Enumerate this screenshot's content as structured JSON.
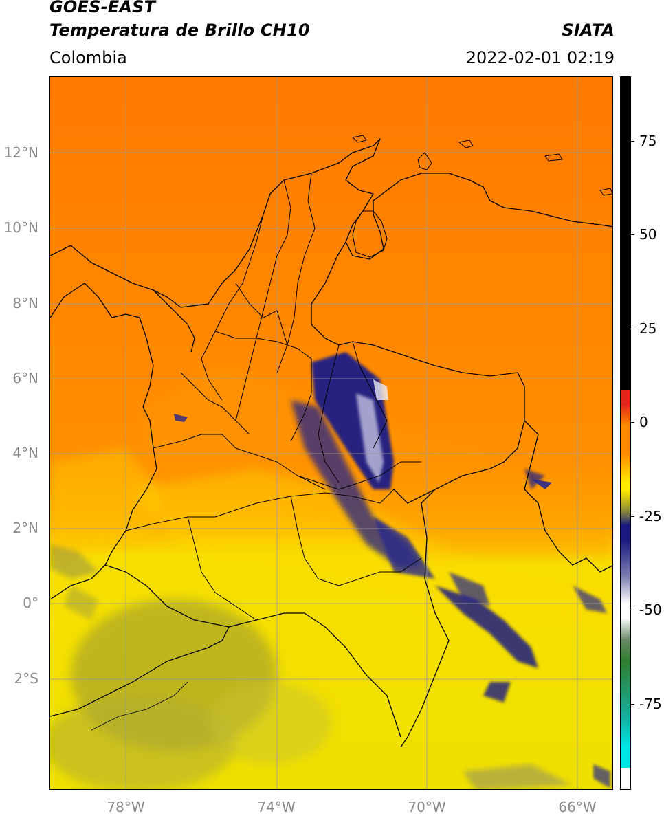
{
  "header": {
    "satellite": "GOES-EAST",
    "product": "Temperatura de Brillo CH10",
    "region": "Colombia",
    "source": "SIATA",
    "datetime": "2022-02-01 02:19"
  },
  "axes": {
    "lat_labels": [
      "12°N",
      "10°N",
      "8°N",
      "6°N",
      "4°N",
      "2°N",
      "0°",
      "2°S"
    ],
    "lon_labels": [
      "78°W",
      "74°W",
      "70°W",
      "66°W"
    ]
  },
  "colorbar": {
    "labels": [
      "75",
      "50",
      "25",
      "0",
      "-25",
      "-50",
      "-75"
    ],
    "colors": {
      "black": "#000000",
      "red": "#e0261a",
      "orange": "#ff8c00",
      "yellow": "#ffea00",
      "olive": "#8a8a3a",
      "navy": "#1a1a80",
      "white": "#ffffff",
      "green": "#2e7d2e",
      "teal": "#18b0a0",
      "cyan": "#00e5e5"
    }
  },
  "map": {
    "colors": {
      "ocean_north": "#ff7a00",
      "land_north": "#ff9500",
      "south": "#f2e100",
      "amazon_gray": "#b5b02a",
      "cloud": "#1c1c7a",
      "grid": "#9a9a9a",
      "border": "#000000"
    }
  }
}
